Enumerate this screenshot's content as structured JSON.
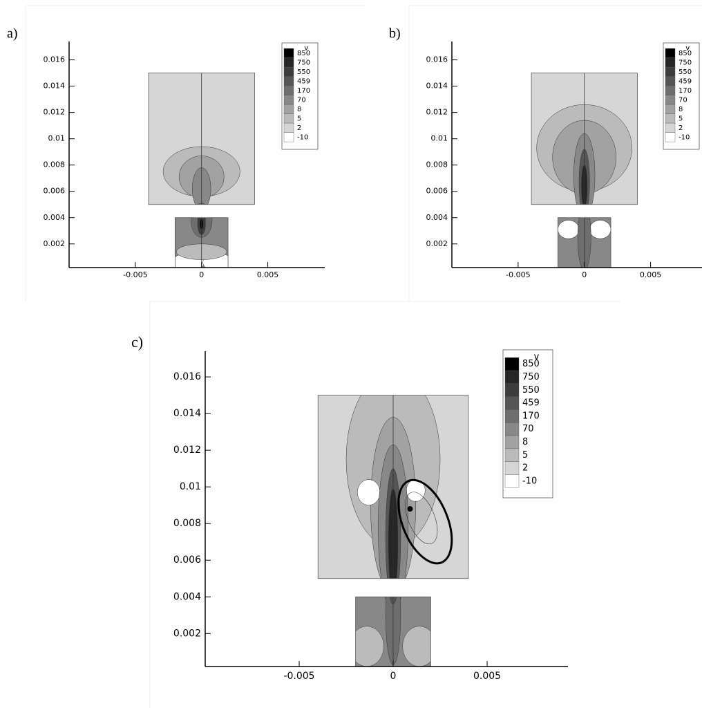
{
  "chart_data": [
    {
      "type": "contour",
      "label": "a)",
      "legend_title": "v",
      "levels": [
        850,
        750,
        550,
        459,
        170,
        70,
        8,
        5,
        2,
        -10
      ],
      "colors": [
        "#000000",
        "#262626",
        "#3c3c3c",
        "#555555",
        "#6e6e6e",
        "#888888",
        "#a2a2a2",
        "#bbbbbb",
        "#d6d6d6",
        "#ffffff"
      ],
      "xlim": [
        -0.01,
        0.0093
      ],
      "ylim": [
        0.0002,
        0.0174
      ],
      "xticks": [
        -0.005,
        0,
        0.005
      ],
      "yticks": [
        0.002,
        0.004,
        0.006,
        0.008,
        0.01,
        0.012,
        0.014,
        0.016
      ]
    },
    {
      "type": "contour",
      "label": "b)",
      "legend_title": "v",
      "levels": [
        850,
        750,
        550,
        459,
        170,
        70,
        8,
        5,
        2,
        -10
      ],
      "colors": [
        "#000000",
        "#262626",
        "#3c3c3c",
        "#555555",
        "#6e6e6e",
        "#888888",
        "#a2a2a2",
        "#bbbbbb",
        "#d6d6d6",
        "#ffffff"
      ],
      "xlim": [
        -0.01,
        0.0093
      ],
      "ylim": [
        0.0002,
        0.0174
      ],
      "xticks": [
        -0.005,
        0,
        0.005
      ],
      "yticks": [
        0.002,
        0.004,
        0.006,
        0.008,
        0.01,
        0.012,
        0.014,
        0.016
      ]
    },
    {
      "type": "contour",
      "label": "c)",
      "legend_title": "v",
      "levels": [
        850,
        750,
        550,
        459,
        170,
        70,
        8,
        5,
        2,
        -10
      ],
      "colors": [
        "#000000",
        "#262626",
        "#3c3c3c",
        "#555555",
        "#6e6e6e",
        "#888888",
        "#a2a2a2",
        "#bbbbbb",
        "#d6d6d6",
        "#ffffff"
      ],
      "xlim": [
        -0.01,
        0.0093
      ],
      "ylim": [
        0.0002,
        0.0174
      ],
      "xticks": [
        -0.005,
        0,
        0.005
      ],
      "yticks": [
        0.002,
        0.004,
        0.006,
        0.008,
        0.01,
        0.012,
        0.014,
        0.016
      ]
    }
  ]
}
